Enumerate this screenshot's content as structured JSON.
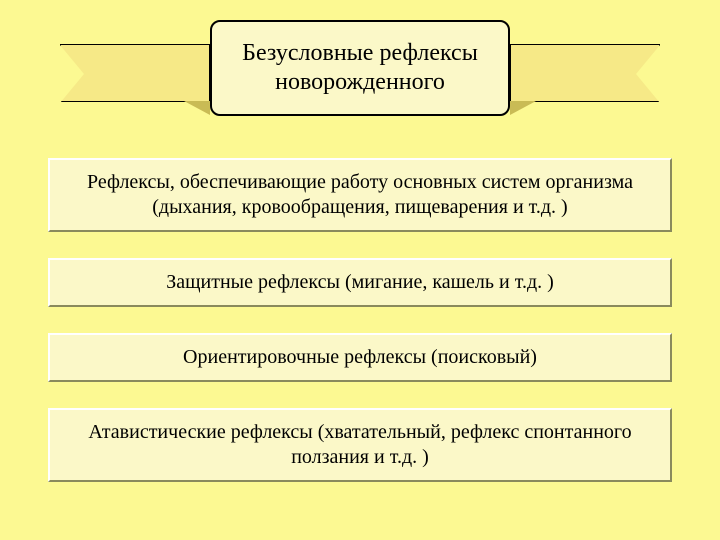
{
  "layout": {
    "background_color": "#fcf992",
    "box_bg_color": "#fbf8c8",
    "box_border_dark": "#8a8a5c",
    "ribbon_fill": "#f6e987",
    "ribbon_notch_color": "#fcf992",
    "fold_color": "#c9bb55",
    "title_fontsize": "24px",
    "box_fontsize": "20px",
    "text_color": "#000000"
  },
  "title": {
    "line1": "Безусловные рефлексы",
    "line2": "новорожденного"
  },
  "boxes": [
    {
      "text": "Рефлексы, обеспечивающие работу основных систем организма (дыхания, кровообращения, пищеварения и т.д. )"
    },
    {
      "text": "Защитные рефлексы (мигание, кашель и т.д. )"
    },
    {
      "text": "Ориентировочные рефлексы (поисковый)"
    },
    {
      "text": "Атавистические рефлексы (хватательный, рефлекс спонтанного ползания и т.д. )"
    }
  ]
}
